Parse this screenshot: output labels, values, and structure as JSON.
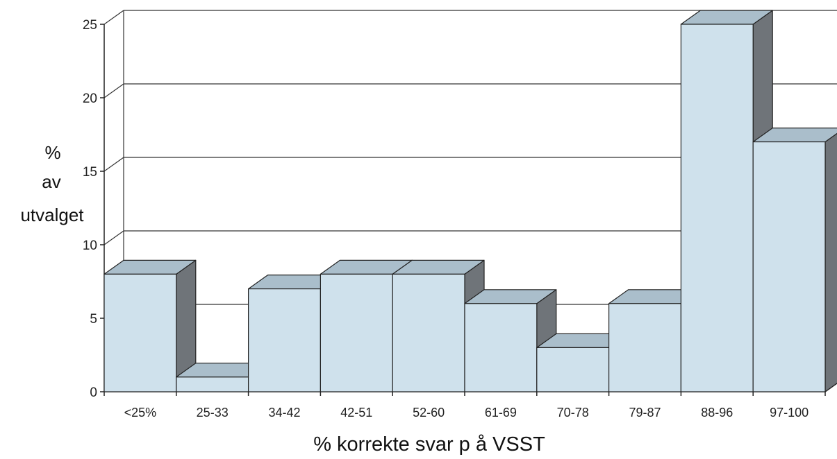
{
  "chart_data": {
    "type": "bar",
    "style": "3d",
    "categories": [
      "<25%",
      "25-33",
      "34-42",
      "42-51",
      "52-60",
      "61-69",
      "70-78",
      "79-87",
      "88-96",
      "97-100"
    ],
    "values": [
      8,
      1,
      7,
      8,
      8,
      6,
      3,
      6,
      25,
      17
    ],
    "ylabel_lines": [
      "%",
      "av",
      "utvalget"
    ],
    "xlabel": "%  korrekte svar p å VSST",
    "ylim": [
      0,
      25
    ],
    "yticks": [
      "0",
      "5",
      "10",
      "15",
      "20",
      "25"
    ],
    "grid": true,
    "legend": "none",
    "colors": {
      "bar_front": "#cfe1ec",
      "bar_top": "#aabecb",
      "bar_side": "#6f7479",
      "outline": "#222222",
      "grid": "#333333"
    }
  }
}
